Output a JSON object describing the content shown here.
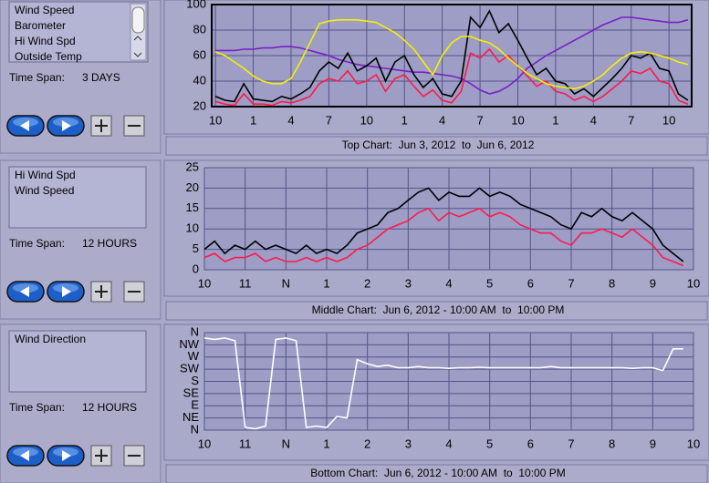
{
  "panels": [
    {
      "time_span_label": "Time Span:",
      "time_span": "3 DAYS"
    },
    {
      "time_span_label": "Time Span:",
      "time_span": "12 HOURS"
    },
    {
      "time_span_label": "Time Span:",
      "time_span": "12 HOURS"
    }
  ],
  "chart_data": [
    {
      "type": "line",
      "caption": "Top Chart:  Jun 3, 2012  to  Jun 6, 2012",
      "x": [
        0,
        0.25,
        0.5,
        0.75,
        1,
        1.25,
        1.5,
        1.75,
        2,
        2.25,
        2.5,
        2.75,
        3,
        3.25,
        3.5,
        3.75,
        4,
        4.25,
        4.5,
        4.75,
        5,
        5.25,
        5.5,
        5.75,
        6,
        6.25,
        6.5,
        6.75,
        7,
        7.25,
        7.5,
        7.75,
        8,
        8.25,
        8.5,
        8.75,
        9,
        9.25,
        9.5,
        9.75,
        10,
        10.25,
        10.5,
        10.75,
        11,
        11.25,
        11.5,
        11.75,
        12,
        12.25,
        12.5
      ],
      "xlim": [
        -0.1,
        12.6
      ],
      "xticks": [
        {
          "value": 0,
          "label": "10"
        },
        {
          "value": 1,
          "label": "1"
        },
        {
          "value": 2,
          "label": "4"
        },
        {
          "value": 3,
          "label": "7"
        },
        {
          "value": 4,
          "label": "10"
        },
        {
          "value": 5,
          "label": "1"
        },
        {
          "value": 6,
          "label": "4"
        },
        {
          "value": 7,
          "label": "7"
        },
        {
          "value": 8,
          "label": "10"
        },
        {
          "value": 9,
          "label": "1"
        },
        {
          "value": 10,
          "label": "4"
        },
        {
          "value": 11,
          "label": "7"
        },
        {
          "value": 12,
          "label": "10"
        }
      ],
      "ylim": [
        20,
        100
      ],
      "yticks": [
        20,
        40,
        60,
        80,
        100
      ],
      "grid": true,
      "series": [
        {
          "name": "Wind Speed",
          "color": "#ff1a4a",
          "values": [
            24,
            22,
            21,
            30,
            22,
            22,
            21,
            24,
            23,
            25,
            28,
            38,
            42,
            40,
            48,
            38,
            40,
            45,
            32,
            42,
            45,
            36,
            28,
            33,
            25,
            23,
            32,
            62,
            58,
            65,
            55,
            60,
            52,
            44,
            36,
            40,
            32,
            30,
            25,
            28,
            24,
            28,
            34,
            40,
            48,
            46,
            50,
            40,
            38,
            25,
            22
          ]
        },
        {
          "name": "Barometer",
          "color": "#7a1fc8",
          "values": [
            64,
            64,
            64,
            65,
            65,
            66,
            66,
            67,
            67,
            66,
            64,
            62,
            60,
            57,
            55,
            53,
            52,
            51,
            50,
            49,
            48,
            47,
            47,
            46,
            45,
            44,
            42,
            38,
            33,
            30,
            32,
            36,
            42,
            50,
            55,
            60,
            64,
            68,
            72,
            76,
            80,
            84,
            87,
            90,
            90,
            89,
            88,
            87,
            86,
            86,
            88
          ]
        },
        {
          "name": "Hi Wind Spd",
          "color": "#000000",
          "values": [
            28,
            25,
            24,
            38,
            26,
            25,
            24,
            28,
            26,
            30,
            35,
            48,
            55,
            50,
            62,
            48,
            52,
            58,
            40,
            55,
            60,
            45,
            35,
            42,
            30,
            28,
            40,
            90,
            82,
            95,
            78,
            85,
            72,
            58,
            45,
            50,
            40,
            38,
            30,
            34,
            28,
            35,
            42,
            50,
            60,
            58,
            62,
            50,
            48,
            30,
            25
          ]
        },
        {
          "name": "Outside Temp",
          "color": "#f5f000",
          "values": [
            63,
            60,
            55,
            50,
            44,
            40,
            38,
            38,
            42,
            55,
            70,
            85,
            87,
            88,
            88,
            88,
            87,
            86,
            82,
            78,
            72,
            65,
            55,
            45,
            60,
            70,
            75,
            75,
            72,
            70,
            65,
            58,
            52,
            46,
            42,
            38,
            36,
            35,
            34,
            36,
            40,
            45,
            52,
            58,
            62,
            63,
            62,
            60,
            58,
            55,
            53
          ]
        }
      ]
    },
    {
      "type": "line",
      "caption": "Middle Chart:  Jun 6, 2012 - 10:00 AM  to  10:00 PM",
      "x": [
        0,
        0.25,
        0.5,
        0.75,
        1,
        1.25,
        1.5,
        1.75,
        2,
        2.25,
        2.5,
        2.75,
        3,
        3.25,
        3.5,
        3.75,
        4,
        4.25,
        4.5,
        4.75,
        5,
        5.25,
        5.5,
        5.75,
        6,
        6.25,
        6.5,
        6.75,
        7,
        7.25,
        7.5,
        7.75,
        8,
        8.25,
        8.5,
        8.75,
        9,
        9.25,
        9.5,
        9.75,
        10,
        10.25,
        10.5,
        10.75,
        11,
        11.25,
        11.5,
        11.75,
        12
      ],
      "xlim": [
        0,
        12
      ],
      "xticks": [
        {
          "value": 0,
          "label": "10"
        },
        {
          "value": 1,
          "label": "11"
        },
        {
          "value": 2,
          "label": "N"
        },
        {
          "value": 3,
          "label": "1"
        },
        {
          "value": 4,
          "label": "2"
        },
        {
          "value": 5,
          "label": "3"
        },
        {
          "value": 6,
          "label": "4"
        },
        {
          "value": 7,
          "label": "5"
        },
        {
          "value": 8,
          "label": "6"
        },
        {
          "value": 9,
          "label": "7"
        },
        {
          "value": 10,
          "label": "8"
        },
        {
          "value": 11,
          "label": "9"
        },
        {
          "value": 12,
          "label": "10"
        }
      ],
      "ylim": [
        0,
        25
      ],
      "yticks": [
        0,
        5,
        10,
        15,
        20,
        25
      ],
      "grid": true,
      "series": [
        {
          "name": "Hi Wind Spd",
          "color": "#000000",
          "values": [
            5,
            7,
            4,
            6,
            5,
            7,
            5,
            6,
            5,
            4,
            6,
            4,
            5,
            4,
            6,
            9,
            10,
            11,
            14,
            15,
            17,
            19,
            20,
            17,
            19,
            18,
            18,
            20,
            18,
            19,
            18,
            16,
            15,
            14,
            13,
            11,
            10,
            14,
            13,
            15,
            13,
            12,
            14,
            12,
            10,
            6,
            4,
            2,
            null
          ]
        },
        {
          "name": "Wind Speed",
          "color": "#ff1a4a",
          "values": [
            3,
            4,
            2,
            3,
            3,
            4,
            2,
            3,
            2,
            2,
            3,
            2,
            3,
            2,
            3,
            5,
            6,
            8,
            10,
            11,
            12,
            14,
            15,
            12,
            14,
            13,
            14,
            15,
            13,
            14,
            13,
            11,
            10,
            9,
            9,
            7,
            6,
            9,
            9,
            10,
            9,
            8,
            10,
            8,
            6,
            3,
            2,
            1,
            null
          ]
        }
      ]
    },
    {
      "type": "line",
      "caption": "Bottom Chart:  Jun 6, 2012 - 10:00 AM  to  10:00 PM",
      "x": [
        0,
        0.25,
        0.5,
        0.75,
        1,
        1.25,
        1.5,
        1.75,
        2,
        2.25,
        2.5,
        2.75,
        3,
        3.25,
        3.5,
        3.75,
        4,
        4.25,
        4.5,
        4.75,
        5,
        5.25,
        5.5,
        5.75,
        6,
        6.25,
        6.5,
        6.75,
        7,
        7.25,
        7.5,
        7.75,
        8,
        8.25,
        8.5,
        8.75,
        9,
        9.25,
        9.5,
        9.75,
        10,
        10.25,
        10.5,
        10.75,
        11,
        11.25,
        11.5,
        11.75,
        12
      ],
      "xlim": [
        0,
        12
      ],
      "xticks": [
        {
          "value": 0,
          "label": "10"
        },
        {
          "value": 1,
          "label": "11"
        },
        {
          "value": 2,
          "label": "N"
        },
        {
          "value": 3,
          "label": "1"
        },
        {
          "value": 4,
          "label": "2"
        },
        {
          "value": 5,
          "label": "3"
        },
        {
          "value": 6,
          "label": "4"
        },
        {
          "value": 7,
          "label": "5"
        },
        {
          "value": 8,
          "label": "6"
        },
        {
          "value": 9,
          "label": "7"
        },
        {
          "value": 10,
          "label": "8"
        },
        {
          "value": 11,
          "label": "9"
        },
        {
          "value": 12,
          "label": "10"
        }
      ],
      "ylim": [
        0,
        360
      ],
      "yticks": [
        {
          "value": 360,
          "label": "N"
        },
        {
          "value": 315,
          "label": "NW"
        },
        {
          "value": 270,
          "label": "W"
        },
        {
          "value": 225,
          "label": "SW"
        },
        {
          "value": 180,
          "label": "S"
        },
        {
          "value": 135,
          "label": "SE"
        },
        {
          "value": 90,
          "label": "E"
        },
        {
          "value": 45,
          "label": "NE"
        },
        {
          "value": 0,
          "label": "N"
        }
      ],
      "grid": true,
      "series": [
        {
          "name": "Wind Direction",
          "color": "#ffffff",
          "values": [
            340,
            335,
            340,
            330,
            10,
            5,
            15,
            335,
            340,
            330,
            10,
            15,
            10,
            50,
            45,
            260,
            245,
            235,
            240,
            230,
            230,
            235,
            230,
            230,
            228,
            230,
            230,
            232,
            230,
            230,
            230,
            230,
            230,
            230,
            235,
            230,
            230,
            230,
            230,
            230,
            230,
            230,
            228,
            230,
            230,
            220,
            300,
            300,
            null
          ]
        }
      ]
    }
  ]
}
